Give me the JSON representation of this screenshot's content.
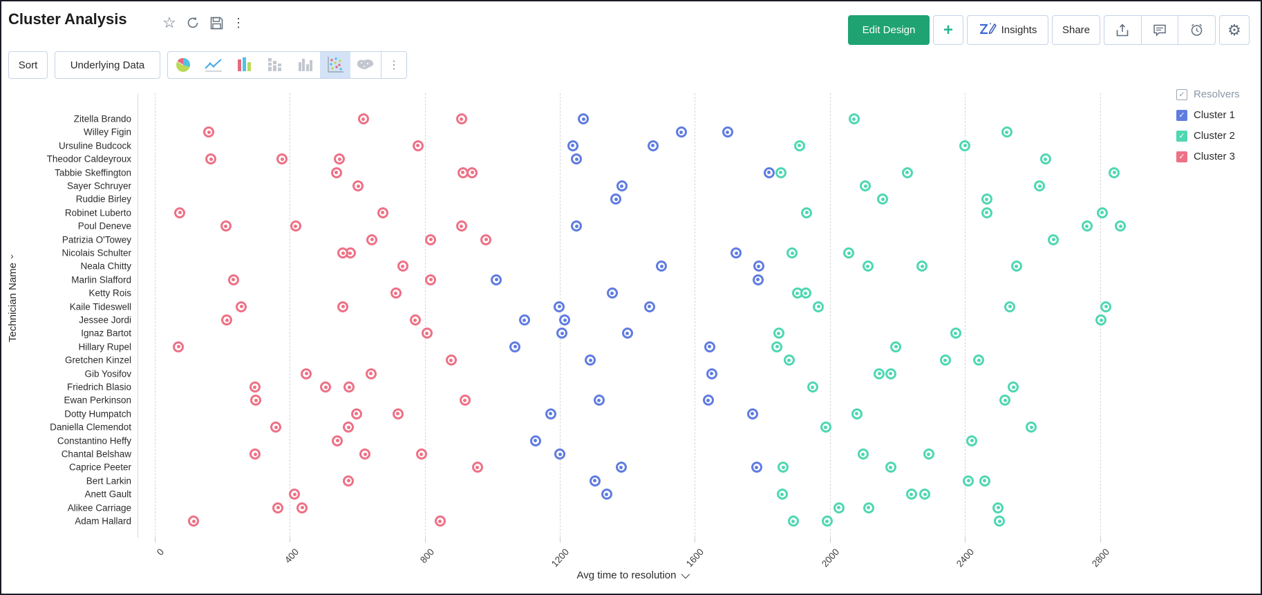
{
  "header": {
    "title": "Cluster Analysis",
    "icons": [
      "star",
      "refresh",
      "save",
      "more-vertical"
    ],
    "actions": {
      "edit_design": "Edit Design",
      "add": "+",
      "insights": "Insights",
      "share": "Share",
      "icon_buttons": [
        "export",
        "comment",
        "alert",
        "settings"
      ]
    }
  },
  "toolbar": {
    "sort": "Sort",
    "underlying_data": "Underlying Data",
    "chart_types": [
      "pie",
      "line",
      "bar",
      "stacked-bar",
      "grouped-bar",
      "scatter",
      "map"
    ],
    "selected_chart_type": "scatter",
    "more": "more-vertical"
  },
  "colors": {
    "edit_design_bg": "#1FA373",
    "selected_icon_bg": "#D3E2F6",
    "cluster1": "#5F7CE0",
    "cluster2": "#4FD7B2",
    "cluster3": "#ED7186",
    "gridline": "#D6D6D6"
  },
  "chart_data": {
    "type": "scatter",
    "title": "Cluster Analysis",
    "xlabel": "Avg time to resolution",
    "ylabel": "Technician Name",
    "x_ticks": [
      0,
      400,
      800,
      1200,
      1600,
      2000,
      2400,
      2800
    ],
    "x_range": [
      0,
      2950
    ],
    "grid": "vertical-dashed",
    "legend_position": "top-right",
    "legend_title": "Resolvers",
    "categories": [
      "Zitella Brando",
      "Willey Figin",
      "Ursuline Budcock",
      "Theodor Caldeyroux",
      "Tabbie Skeffington",
      "Sayer Schruyer",
      "Ruddie Birley",
      "Robinet Luberto",
      "Poul Deneve",
      "Patrizia O'Towey",
      "Nicolais Schulter",
      "Neala Chitty",
      "Marlin Slafford",
      "Ketty Rois",
      "Kaile Tideswell",
      "Jessee Jordi",
      "Ignaz Bartot",
      "Hillary Rupel",
      "Gretchen Kinzel",
      "Gib Yosifov",
      "Friedrich Blasio",
      "Ewan Perkinson",
      "Dotty Humpatch",
      "Daniella Clemendot",
      "Constantino Heffy",
      "Chantal Belshaw",
      "Caprice Peeter",
      "Bert Larkin",
      "Anett Gault",
      "Alikee Carriage",
      "Adam Hallard"
    ],
    "points_format": "[avg_time_to_resolution, technician_index]",
    "series": [
      {
        "name": "Cluster 1",
        "color": "#5F7CE0",
        "points": [
          [
            1012,
            12
          ],
          [
            1270,
            0
          ],
          [
            1238,
            2
          ],
          [
            1249,
            3
          ],
          [
            1560,
            1
          ],
          [
            1476,
            2
          ],
          [
            1697,
            1
          ],
          [
            1820,
            4
          ],
          [
            1384,
            5
          ],
          [
            1366,
            6
          ],
          [
            1249,
            8
          ],
          [
            1501,
            11
          ],
          [
            1722,
            10
          ],
          [
            1789,
            11
          ],
          [
            1787,
            12
          ],
          [
            1355,
            13
          ],
          [
            1466,
            14
          ],
          [
            1095,
            15
          ],
          [
            1198,
            14
          ],
          [
            1215,
            15
          ],
          [
            1067,
            17
          ],
          [
            1206,
            16
          ],
          [
            1400,
            16
          ],
          [
            1290,
            18
          ],
          [
            1316,
            21
          ],
          [
            1173,
            22
          ],
          [
            1128,
            24
          ],
          [
            1200,
            25
          ],
          [
            1382,
            26
          ],
          [
            1304,
            27
          ],
          [
            1339,
            28
          ],
          [
            1644,
            17
          ],
          [
            1650,
            19
          ],
          [
            1640,
            21
          ],
          [
            1771,
            22
          ],
          [
            1783,
            26
          ]
        ]
      },
      {
        "name": "Cluster 2",
        "color": "#4FD7B2",
        "points": [
          [
            2072,
            0
          ],
          [
            1910,
            2
          ],
          [
            1855,
            4
          ],
          [
            1931,
            7
          ],
          [
            1888,
            10
          ],
          [
            2056,
            10
          ],
          [
            2113,
            11
          ],
          [
            1904,
            13
          ],
          [
            1928,
            13
          ],
          [
            1966,
            14
          ],
          [
            2105,
            5
          ],
          [
            2157,
            6
          ],
          [
            2524,
            1
          ],
          [
            2400,
            2
          ],
          [
            2639,
            3
          ],
          [
            2229,
            4
          ],
          [
            2465,
            6
          ],
          [
            2465,
            7
          ],
          [
            2621,
            5
          ],
          [
            2842,
            4
          ],
          [
            2807,
            7
          ],
          [
            2762,
            8
          ],
          [
            2662,
            9
          ],
          [
            2861,
            8
          ],
          [
            2553,
            11
          ],
          [
            2273,
            11
          ],
          [
            2533,
            14
          ],
          [
            2818,
            14
          ],
          [
            2804,
            15
          ],
          [
            1848,
            16
          ],
          [
            1843,
            17
          ],
          [
            1879,
            18
          ],
          [
            1949,
            20
          ],
          [
            2146,
            19
          ],
          [
            1988,
            23
          ],
          [
            2080,
            22
          ],
          [
            1862,
            26
          ],
          [
            2098,
            25
          ],
          [
            1859,
            28
          ],
          [
            1891,
            30
          ],
          [
            2027,
            29
          ],
          [
            1992,
            30
          ],
          [
            2115,
            29
          ],
          [
            2373,
            16
          ],
          [
            2195,
            17
          ],
          [
            2180,
            19
          ],
          [
            2342,
            18
          ],
          [
            2441,
            18
          ],
          [
            2543,
            20
          ],
          [
            2519,
            21
          ],
          [
            2597,
            23
          ],
          [
            2421,
            24
          ],
          [
            2180,
            26
          ],
          [
            2293,
            25
          ],
          [
            2410,
            27
          ],
          [
            2459,
            27
          ],
          [
            2281,
            28
          ],
          [
            2242,
            28
          ],
          [
            2498,
            29
          ],
          [
            2503,
            30
          ]
        ]
      },
      {
        "name": "Cluster 3",
        "color": "#ED7186",
        "points": [
          [
            160,
            1
          ],
          [
            166,
            3
          ],
          [
            377,
            3
          ],
          [
            547,
            3
          ],
          [
            538,
            4
          ],
          [
            602,
            5
          ],
          [
            618,
            0
          ],
          [
            780,
            2
          ],
          [
            909,
            0
          ],
          [
            940,
            4
          ],
          [
            913,
            4
          ],
          [
            675,
            7
          ],
          [
            74,
            7
          ],
          [
            210,
            8
          ],
          [
            417,
            8
          ],
          [
            643,
            9
          ],
          [
            579,
            10
          ],
          [
            557,
            10
          ],
          [
            735,
            11
          ],
          [
            233,
            12
          ],
          [
            714,
            13
          ],
          [
            817,
            9
          ],
          [
            817,
            12
          ],
          [
            256,
            14
          ],
          [
            981,
            9
          ],
          [
            909,
            8
          ],
          [
            557,
            14
          ],
          [
            213,
            15
          ],
          [
            70,
            17
          ],
          [
            771,
            15
          ],
          [
            806,
            16
          ],
          [
            449,
            19
          ],
          [
            506,
            20
          ],
          [
            576,
            20
          ],
          [
            640,
            19
          ],
          [
            296,
            20
          ],
          [
            299,
            21
          ],
          [
            359,
            23
          ],
          [
            297,
            25
          ],
          [
            541,
            24
          ],
          [
            574,
            23
          ],
          [
            597,
            22
          ],
          [
            623,
            25
          ],
          [
            574,
            27
          ],
          [
            414,
            28
          ],
          [
            437,
            29
          ],
          [
            365,
            29
          ],
          [
            115,
            30
          ],
          [
            720,
            22
          ],
          [
            790,
            25
          ],
          [
            878,
            18
          ],
          [
            919,
            21
          ],
          [
            956,
            26
          ],
          [
            845,
            30
          ]
        ]
      }
    ]
  }
}
